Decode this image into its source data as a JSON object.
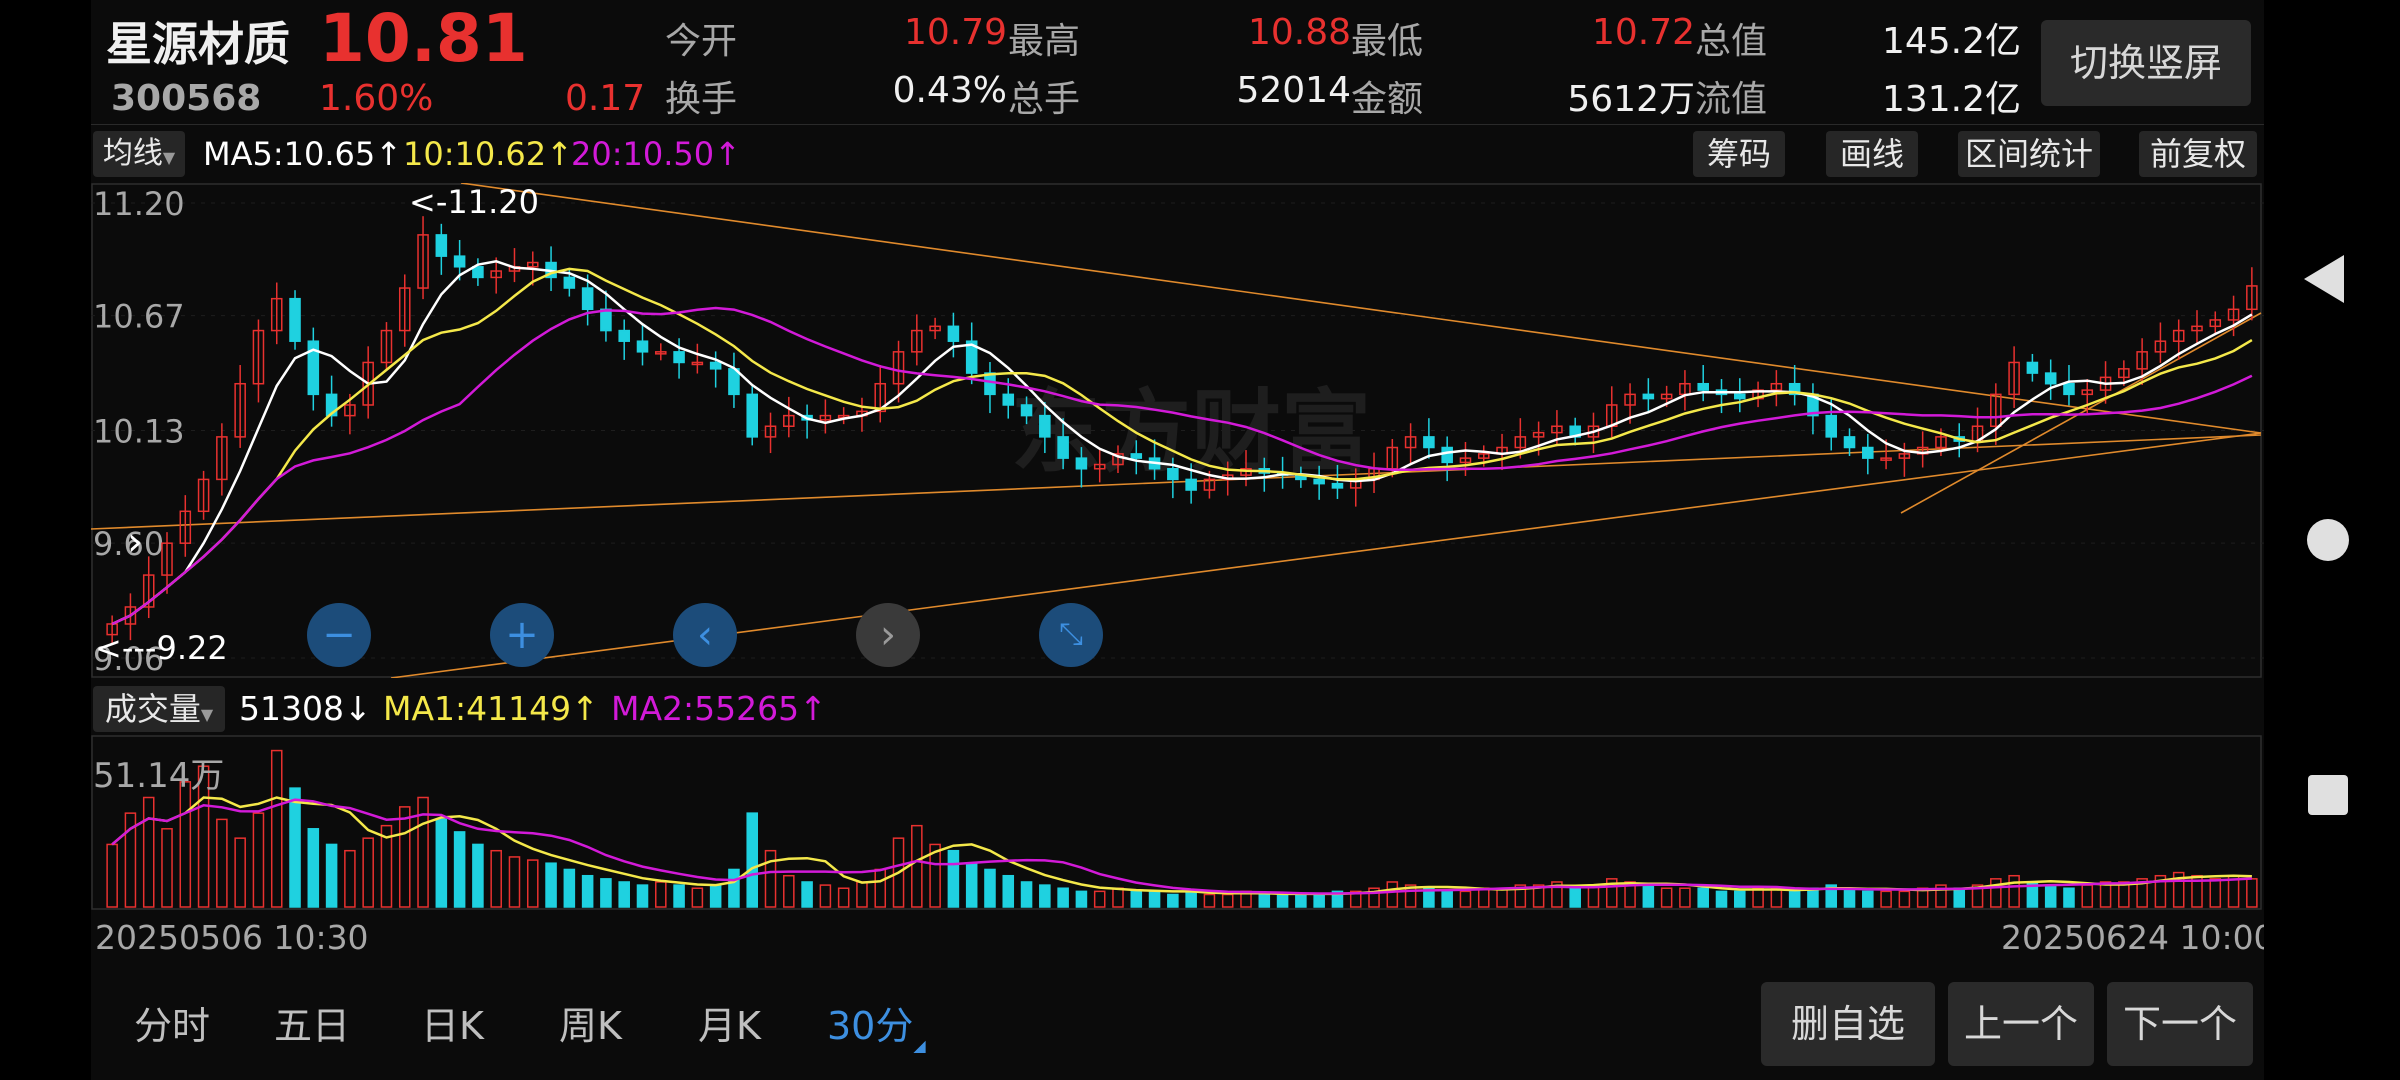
{
  "stock": {
    "name": "星源材质",
    "code": "300568",
    "price": "10.81",
    "change_pct": "1.60%",
    "change_amt": "0.17"
  },
  "quote": {
    "open_label": "今开",
    "open": "10.79",
    "high_label": "最高",
    "high": "10.88",
    "low_label": "最低",
    "low": "10.72",
    "mktcap_label": "总值",
    "mktcap": "145.2亿",
    "turnover_label": "换手",
    "turnover": "0.43%",
    "vol_label": "总手",
    "vol": "52014",
    "amount_label": "金额",
    "amount": "5612万",
    "float_label": "流值",
    "float": "131.2亿"
  },
  "switch_button": "切换竖屏",
  "ma_bar": {
    "selector": "均线",
    "ma5": "MA5:10.65",
    "ma10": "10:10.62",
    "ma20": "20:10.50",
    "up_arrow": "↑",
    "tools": [
      "筹码",
      "画线",
      "区间统计",
      "前复权"
    ]
  },
  "price_axis": [
    "11.20",
    "10.67",
    "10.13",
    "9.60",
    "9.06"
  ],
  "annotations": {
    "high_marker": "<-11.20",
    "low_marker": "<---9.22"
  },
  "volume_bar": {
    "selector": "成交量",
    "vol": "51308",
    "vol_arrow": "↓",
    "ma1": "MA1:41149",
    "ma2": "MA2:55265",
    "up_arrow": "↑",
    "axis_max": "51.14万"
  },
  "time_axis": {
    "start": "20250506 10:30",
    "end": "20250624 10:00"
  },
  "watermark": "东方财富",
  "period_tabs": [
    "分时",
    "五日",
    "日K",
    "周K",
    "月K",
    "30分"
  ],
  "active_tab": "30分",
  "bottom_buttons": {
    "delete": "删自选",
    "prev": "上一个",
    "next": "下一个"
  },
  "colors": {
    "up": "#e8312f",
    "down": "#1fd1e0",
    "ma5": "#ffffff",
    "ma10": "#f4e84a",
    "ma20": "#d21ad8",
    "trend": "#e08a2c",
    "active_tab": "#3d8fe0"
  },
  "chart_data": {
    "type": "candlestick",
    "series": [
      {
        "name": "MA5",
        "value": 10.65
      },
      {
        "name": "MA10",
        "value": 10.62
      },
      {
        "name": "MA20",
        "value": 10.5
      }
    ],
    "close": [
      9.22,
      9.3,
      9.45,
      9.6,
      9.75,
      9.9,
      10.1,
      10.35,
      10.6,
      10.75,
      10.55,
      10.3,
      10.2,
      10.25,
      10.45,
      10.6,
      10.8,
      11.05,
      10.95,
      10.9,
      10.85,
      10.88,
      10.9,
      10.92,
      10.85,
      10.8,
      10.7,
      10.6,
      10.55,
      10.5,
      10.5,
      10.45,
      10.45,
      10.42,
      10.3,
      10.1,
      10.15,
      10.2,
      10.18,
      10.2,
      10.2,
      10.22,
      10.35,
      10.5,
      10.6,
      10.62,
      10.55,
      10.4,
      10.3,
      10.25,
      10.2,
      10.1,
      10.0,
      9.95,
      9.97,
      10.02,
      10.0,
      9.95,
      9.9,
      9.85,
      9.9,
      9.92,
      9.95,
      9.93,
      9.92,
      9.9,
      9.88,
      9.86,
      9.9,
      9.95,
      10.05,
      10.1,
      10.05,
      9.98,
      10.0,
      10.02,
      10.05,
      10.1,
      10.12,
      10.15,
      10.1,
      10.15,
      10.25,
      10.3,
      10.28,
      10.3,
      10.35,
      10.32,
      10.3,
      10.28,
      10.32,
      10.35,
      10.3,
      10.2,
      10.1,
      10.05,
      10.0,
      10.0,
      10.02,
      10.05,
      10.1,
      10.08,
      10.15,
      10.3,
      10.45,
      10.4,
      10.35,
      10.3,
      10.32,
      10.38,
      10.42,
      10.5,
      10.55,
      10.6,
      10.62,
      10.65,
      10.7,
      10.81
    ],
    "volume_wan": [
      20,
      30,
      35,
      25,
      40,
      45,
      28,
      22,
      30,
      50,
      38,
      25,
      20,
      18,
      22,
      26,
      32,
      35,
      28,
      24,
      20,
      18,
      16,
      15,
      14,
      12,
      10,
      9,
      8,
      7,
      8,
      7,
      6,
      7,
      12,
      30,
      18,
      10,
      8,
      7,
      6,
      8,
      12,
      22,
      26,
      20,
      18,
      14,
      12,
      10,
      8,
      7,
      6,
      5,
      5,
      6,
      5,
      5,
      4,
      5,
      4,
      4,
      5,
      4,
      4,
      4,
      4,
      5,
      5,
      6,
      8,
      7,
      6,
      5,
      5,
      6,
      6,
      7,
      7,
      8,
      6,
      7,
      9,
      8,
      7,
      6,
      6,
      6,
      5,
      5,
      6,
      6,
      5,
      6,
      7,
      6,
      5,
      5,
      5,
      6,
      7,
      6,
      7,
      9,
      10,
      8,
      7,
      6,
      7,
      8,
      8,
      9,
      10,
      11,
      10,
      9,
      10,
      9
    ],
    "price_ylim": [
      9.06,
      11.2
    ],
    "volume_ymax": "51.14万",
    "x_range": [
      "20250506 10:30",
      "20250624 10:00"
    ]
  }
}
